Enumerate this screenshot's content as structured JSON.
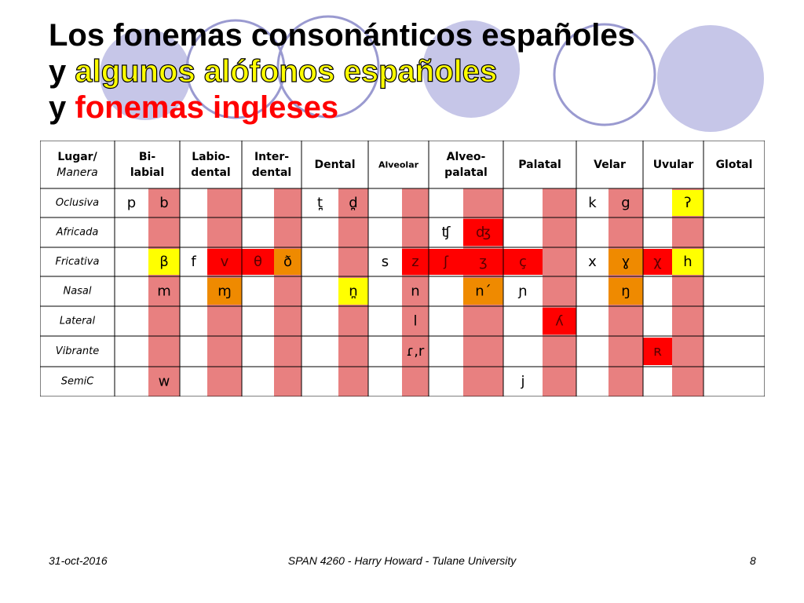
{
  "title": {
    "line1": "Los fonemas consonánticos españoles",
    "line2_prefix": "y",
    "line2_highlight": "algunos alófonos españoles",
    "line3_prefix": "y",
    "line3_red": "fonemas ingleses"
  },
  "table": {
    "corner": [
      "Lugar/",
      "Manera"
    ],
    "places": [
      [
        "Bi-",
        "labial"
      ],
      [
        "Labio-",
        "dental"
      ],
      [
        "Inter-",
        "dental"
      ],
      [
        "Dental"
      ],
      [
        "Alveolar"
      ],
      [
        "Alveo-",
        "palatal"
      ],
      [
        "Palatal"
      ],
      [
        "Velar"
      ],
      [
        "Uvular"
      ],
      [
        "Glotal"
      ]
    ],
    "manners": [
      "Oclusiva",
      "Africada",
      "Fricativa",
      "Nasal",
      "Lateral",
      "Vibrante",
      "SemiC"
    ],
    "rows": [
      [
        {
          "t": "p"
        },
        {
          "t": "b"
        },
        {},
        {},
        {},
        {},
        {
          "t": "t̪"
        },
        {
          "t": "d̪"
        },
        {},
        {},
        {},
        {},
        {},
        {},
        {
          "t": "k"
        },
        {
          "t": "g"
        },
        {},
        {
          "t": "ʔ",
          "bg": "yellow"
        }
      ],
      [
        {},
        {},
        {},
        {},
        {},
        {},
        {},
        {},
        {},
        {},
        {
          "t": "ʧ"
        },
        {
          "t": "ʤ",
          "bg": "red"
        },
        {},
        {},
        {},
        {},
        {},
        {}
      ],
      [
        {},
        {
          "t": "β",
          "bg": "yellow"
        },
        {
          "t": "f"
        },
        {
          "t": "v",
          "bg": "red"
        },
        {
          "t": "θ",
          "bg": "red"
        },
        {
          "t": "ð",
          "bg": "orange"
        },
        {},
        {},
        {
          "t": "s"
        },
        {
          "t": "z",
          "bg": "red"
        },
        {
          "t": "ʃ",
          "bg": "red"
        },
        {
          "t": "ʒ",
          "bg": "red"
        },
        {
          "t": "ç",
          "bg": "red"
        },
        {},
        {
          "t": "x"
        },
        {
          "t": "ɣ",
          "bg": "orange"
        },
        {
          "t": "χ",
          "bg": "red"
        },
        {
          "t": "h",
          "bg": "yellow"
        }
      ],
      [
        {},
        {
          "t": "m"
        },
        {},
        {
          "t": "ɱ",
          "bg": "orange"
        },
        {},
        {},
        {},
        {
          "t": "n̪",
          "bg": "yellow"
        },
        {},
        {
          "t": "n"
        },
        {},
        {
          "t": "n´",
          "bg": "orange"
        },
        {
          "t": "ɲ"
        },
        {},
        {},
        {
          "t": "ŋ",
          "bg": "orange"
        },
        {},
        {}
      ],
      [
        {},
        {},
        {},
        {},
        {},
        {},
        {},
        {},
        {},
        {
          "t": "l"
        },
        {},
        {},
        {},
        {
          "t": "ʎ",
          "bg": "red"
        },
        {},
        {},
        {},
        {}
      ],
      [
        {},
        {},
        {},
        {},
        {},
        {},
        {},
        {},
        {},
        {
          "t": "ɾ,r"
        },
        {},
        {},
        {},
        {},
        {},
        {},
        {
          "t": "ʀ",
          "bg": "red"
        },
        {}
      ],
      [
        {},
        {
          "t": "w"
        },
        {},
        {},
        {},
        {},
        {},
        {},
        {},
        {},
        {},
        {},
        {
          "t": "j"
        },
        {},
        {},
        {},
        {},
        {}
      ]
    ]
  },
  "footer": {
    "date": "31-oct-2016",
    "course": "SPAN 4260 - Harry Howard - Tulane University",
    "page": "8"
  },
  "colors": {
    "pink": "#e88080",
    "red": "#ff0000",
    "orange": "#ef8a00",
    "yellow": "#ffff00",
    "circle_fill": "#c6c6e8",
    "circle_stroke": "#9a9ad0"
  }
}
